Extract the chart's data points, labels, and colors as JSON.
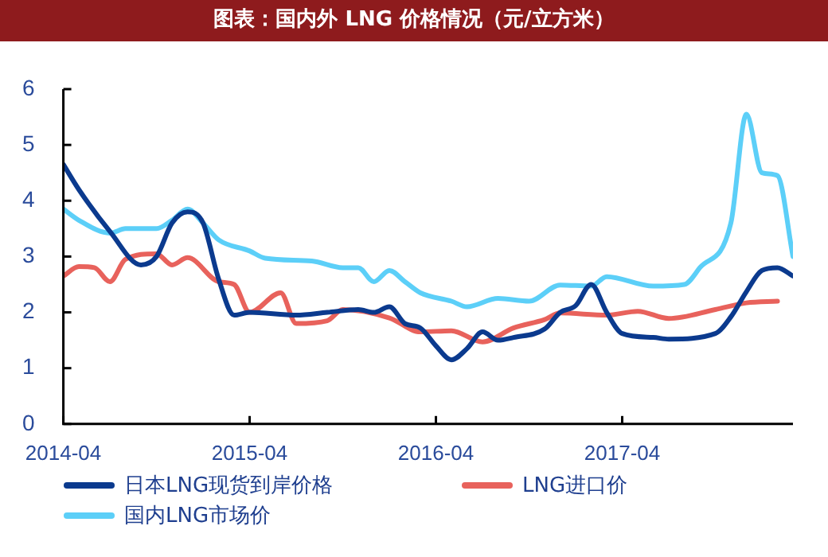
{
  "chart_data": {
    "type": "line",
    "title": "图表：国内外 LNG 价格情况（元/立方米）",
    "xlim": [
      "2014-04",
      "2018-03"
    ],
    "xticks": [
      "2014-04",
      "2015-04",
      "2016-04",
      "2017-04"
    ],
    "ylim": [
      0,
      6
    ],
    "yticks": [
      0,
      1,
      2,
      3,
      4,
      5,
      6
    ],
    "legend": "bottom",
    "marker": "none",
    "line_style": "solid",
    "series": [
      {
        "name": "日本LNG现货到岸价格",
        "color": "#0b3a8e",
        "x": [
          "2014-04",
          "2014-05",
          "2014-07",
          "2014-09",
          "2014-10",
          "2014-11",
          "2014-12",
          "2015-01",
          "2015-02",
          "2015-03",
          "2015-04",
          "2015-07",
          "2015-09",
          "2015-11",
          "2015-12",
          "2016-01",
          "2016-02",
          "2016-03",
          "2016-04",
          "2016-05",
          "2016-06",
          "2016-07",
          "2016-08",
          "2016-09",
          "2016-11",
          "2016-12",
          "2017-01",
          "2017-02",
          "2017-03",
          "2017-04",
          "2017-06",
          "2017-07",
          "2017-10",
          "2017-11",
          "2017-12",
          "2018-01",
          "2018-02",
          "2018-03"
        ],
        "values": [
          4.65,
          4.2,
          3.45,
          2.85,
          3.0,
          3.6,
          3.8,
          3.6,
          2.6,
          1.95,
          2.0,
          1.95,
          2.0,
          2.05,
          2.0,
          2.1,
          1.8,
          1.72,
          1.4,
          1.15,
          1.35,
          1.65,
          1.5,
          1.55,
          1.7,
          2.0,
          2.12,
          2.5,
          2.0,
          1.62,
          1.55,
          1.52,
          1.62,
          1.92,
          2.37,
          2.75,
          2.8,
          2.65
        ]
      },
      {
        "name": "LNG进口价",
        "color": "#e8625c",
        "x": [
          "2014-04",
          "2014-05",
          "2014-06",
          "2014-07",
          "2014-08",
          "2014-10",
          "2014-11",
          "2014-12",
          "2015-02",
          "2015-03",
          "2015-04",
          "2015-06",
          "2015-07",
          "2015-09",
          "2015-10",
          "2016-01",
          "2016-03",
          "2016-05",
          "2016-07",
          "2016-09",
          "2016-11",
          "2016-12",
          "2017-03",
          "2017-05",
          "2017-07",
          "2017-10",
          "2017-12",
          "2018-02"
        ],
        "values": [
          2.65,
          2.82,
          2.8,
          2.55,
          2.95,
          3.05,
          2.85,
          2.98,
          2.55,
          2.5,
          2.0,
          2.35,
          1.8,
          1.85,
          2.05,
          1.9,
          1.65,
          1.67,
          1.47,
          1.72,
          1.87,
          1.99,
          1.95,
          2.02,
          1.89,
          2.05,
          2.17,
          2.2
        ]
      },
      {
        "name": "国内LNG市场价",
        "color": "#5ccff8",
        "x": [
          "2014-04",
          "2014-05",
          "2014-07",
          "2014-08",
          "2014-10",
          "2014-11",
          "2014-12",
          "2015-01",
          "2015-02",
          "2015-04",
          "2015-05",
          "2015-08",
          "2015-10",
          "2015-11",
          "2015-12",
          "2016-01",
          "2016-02",
          "2016-03",
          "2016-05",
          "2016-06",
          "2016-08",
          "2016-10",
          "2016-12",
          "2017-02",
          "2017-03",
          "2017-06",
          "2017-08",
          "2017-09",
          "2017-11",
          "2017-12",
          "2018-01",
          "2018-02",
          "2018-03"
        ],
        "values": [
          3.85,
          3.65,
          3.42,
          3.5,
          3.5,
          3.65,
          3.85,
          3.6,
          3.3,
          3.1,
          2.97,
          2.92,
          2.8,
          2.8,
          2.55,
          2.75,
          2.55,
          2.35,
          2.2,
          2.1,
          2.25,
          2.2,
          2.49,
          2.47,
          2.64,
          2.47,
          2.5,
          2.8,
          3.6,
          5.55,
          4.5,
          4.45,
          3.0
        ]
      }
    ]
  }
}
